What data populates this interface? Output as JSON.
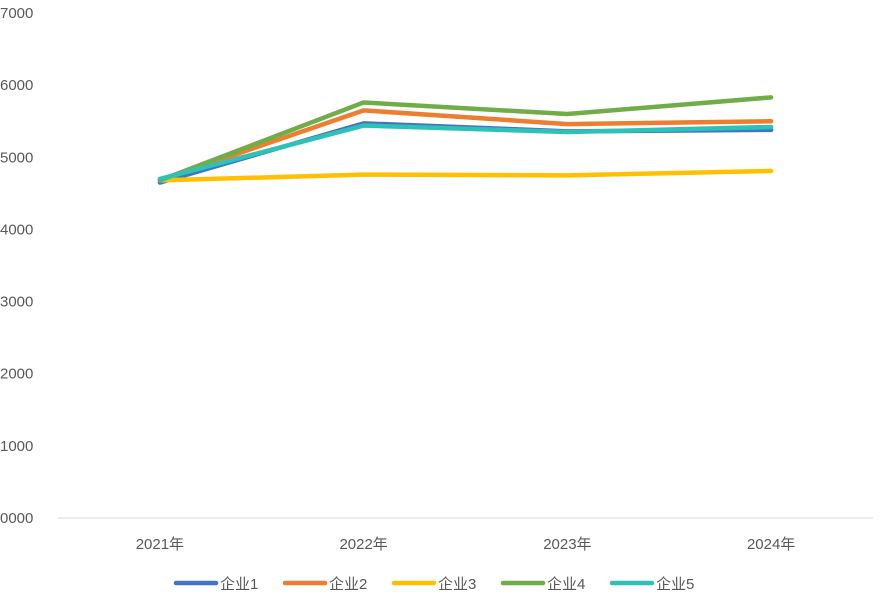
{
  "chart_data": {
    "type": "line",
    "categories": [
      "2021年",
      "2022年",
      "2023年",
      "2024年"
    ],
    "ylim": [
      0,
      7000
    ],
    "yticks": [
      "0000",
      "1000",
      "2000",
      "3000",
      "4000",
      "5000",
      "6000",
      "7000"
    ],
    "grid": false,
    "legend_position": "bottom",
    "series": [
      {
        "name": "企业1",
        "color": "#4472C4",
        "values": [
          4650,
          5470,
          5360,
          5380
        ]
      },
      {
        "name": "企业2",
        "color": "#ED7D31",
        "values": [
          4680,
          5650,
          5460,
          5500
        ]
      },
      {
        "name": "企业3",
        "color": "#FFC000",
        "values": [
          4680,
          4760,
          4750,
          4810
        ]
      },
      {
        "name": "企业4",
        "color": "#70AD47",
        "values": [
          4680,
          5760,
          5600,
          5830
        ]
      },
      {
        "name": "企业5",
        "color": "#2EC1B8",
        "values": [
          4700,
          5440,
          5350,
          5420
        ]
      }
    ]
  }
}
